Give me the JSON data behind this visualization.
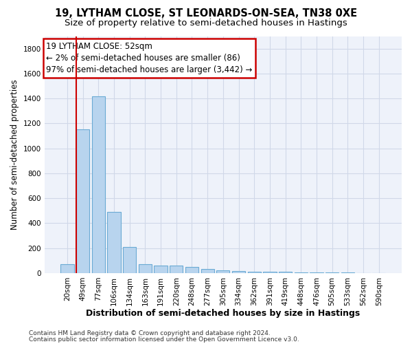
{
  "title1": "19, LYTHAM CLOSE, ST LEONARDS-ON-SEA, TN38 0XE",
  "title2": "Size of property relative to semi-detached houses in Hastings",
  "xlabel": "Distribution of semi-detached houses by size in Hastings",
  "ylabel": "Number of semi-detached properties",
  "footer1": "Contains HM Land Registry data © Crown copyright and database right 2024.",
  "footer2": "Contains public sector information licensed under the Open Government Licence v3.0.",
  "categories": [
    "20sqm",
    "49sqm",
    "77sqm",
    "106sqm",
    "134sqm",
    "163sqm",
    "191sqm",
    "220sqm",
    "248sqm",
    "277sqm",
    "305sqm",
    "334sqm",
    "362sqm",
    "391sqm",
    "419sqm",
    "448sqm",
    "476sqm",
    "505sqm",
    "533sqm",
    "562sqm",
    "590sqm"
  ],
  "values": [
    72,
    1155,
    1415,
    490,
    210,
    72,
    62,
    58,
    48,
    35,
    22,
    18,
    12,
    12,
    10,
    8,
    5,
    4,
    3,
    2,
    1
  ],
  "bar_color": "#b8d4ee",
  "bar_edge_color": "#6aaad4",
  "vline_color": "#cc0000",
  "vline_x_idx": 1,
  "annotation_line1": "19 LYTHAM CLOSE: 52sqm",
  "annotation_line2": "← 2% of semi-detached houses are smaller (86)",
  "annotation_line3": "97% of semi-detached houses are larger (3,442) →",
  "annotation_box_color": "#ffffff",
  "annotation_box_edge": "#cc0000",
  "ylim": [
    0,
    1900
  ],
  "yticks": [
    0,
    200,
    400,
    600,
    800,
    1000,
    1200,
    1400,
    1600,
    1800
  ],
  "grid_color": "#d0d8e8",
  "bg_color": "#eef2fa",
  "title1_fontsize": 10.5,
  "title2_fontsize": 9.5,
  "xlabel_fontsize": 9,
  "ylabel_fontsize": 8.5,
  "tick_fontsize": 7.5,
  "footer_fontsize": 6.5,
  "ann_fontsize": 8.5
}
